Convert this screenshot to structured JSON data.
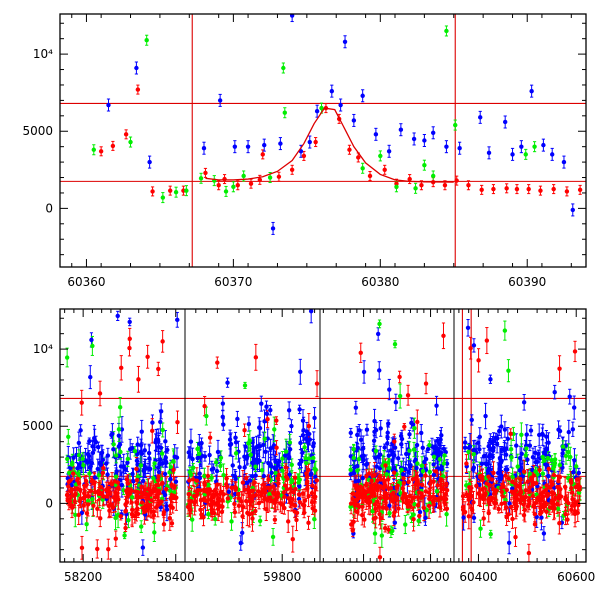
{
  "colors": {
    "red": "#ff0000",
    "green": "#00ee00",
    "blue": "#0000ff",
    "fit": "#dd0000",
    "ref": "#dd0000"
  },
  "chart_data": [
    {
      "type": "scatter",
      "name_hint": "top-panel",
      "xlim": [
        60358.2,
        60394.0
      ],
      "ylim": [
        -3800,
        12600
      ],
      "x_ticks": [
        60360,
        60370,
        60380,
        60390
      ],
      "y_ticks": [
        0,
        5000,
        10000
      ],
      "y_tick_labels": [
        "0",
        "5000",
        "10⁴"
      ],
      "hlines": [
        6800,
        1750
      ],
      "vlines": [
        60367.2,
        60385.1
      ],
      "series": [
        {
          "color": "red",
          "points": [
            [
              60361.0,
              3700
            ],
            [
              60361.8,
              4050
            ],
            [
              60362.7,
              4800
            ],
            [
              60363.5,
              7700
            ],
            [
              60364.5,
              1100
            ],
            [
              60365.7,
              1150
            ],
            [
              60366.6,
              1150
            ],
            [
              60368.1,
              2300
            ],
            [
              60369.0,
              1500
            ],
            [
              60369.4,
              1900
            ],
            [
              60370.3,
              1500
            ],
            [
              60371.2,
              1600
            ],
            [
              60371.8,
              1850
            ],
            [
              60372.0,
              3500
            ],
            [
              60373.1,
              2050
            ],
            [
              60374.0,
              2500
            ],
            [
              60374.8,
              3400
            ],
            [
              60375.6,
              4300
            ],
            [
              60376.3,
              6500
            ],
            [
              60377.2,
              5800
            ],
            [
              60377.9,
              3800
            ],
            [
              60378.5,
              3300
            ],
            [
              60379.3,
              2100
            ],
            [
              60380.3,
              2500
            ],
            [
              60381.1,
              1600
            ],
            [
              60382.0,
              1900
            ],
            [
              60382.8,
              1500
            ],
            [
              60383.6,
              1700
            ],
            [
              60384.4,
              1500
            ],
            [
              60385.2,
              1800
            ],
            [
              60386.0,
              1500
            ],
            [
              60386.9,
              1200
            ],
            [
              60387.7,
              1250
            ],
            [
              60388.6,
              1300
            ],
            [
              60389.3,
              1250
            ],
            [
              60390.1,
              1250
            ],
            [
              60390.9,
              1150
            ],
            [
              60391.8,
              1250
            ],
            [
              60392.7,
              1100
            ],
            [
              60393.6,
              1200
            ]
          ]
        },
        {
          "color": "green",
          "points": [
            [
              60360.5,
              3800
            ],
            [
              60363.0,
              4300
            ],
            [
              60364.1,
              10900
            ],
            [
              60365.2,
              700
            ],
            [
              60366.1,
              1050
            ],
            [
              60366.8,
              1150
            ],
            [
              60367.8,
              1950
            ],
            [
              60368.7,
              1800
            ],
            [
              60369.5,
              1100
            ],
            [
              60370.0,
              1400
            ],
            [
              60370.7,
              2100
            ],
            [
              60372.5,
              2000
            ],
            [
              60373.4,
              9100
            ],
            [
              60373.5,
              6200
            ],
            [
              60376.0,
              6500
            ],
            [
              60378.8,
              2600
            ],
            [
              60380.0,
              3400
            ],
            [
              60381.1,
              1400
            ],
            [
              60382.4,
              1300
            ],
            [
              60383.0,
              2800
            ],
            [
              60383.6,
              2100
            ],
            [
              60384.5,
              11500
            ],
            [
              60385.1,
              5400
            ],
            [
              60389.9,
              3500
            ],
            [
              60390.5,
              4000
            ]
          ]
        },
        {
          "color": "blue",
          "points": [
            [
              60361.5,
              6700
            ],
            [
              60363.4,
              9100
            ],
            [
              60364.3,
              3000
            ],
            [
              60368.0,
              3900
            ],
            [
              60369.1,
              7000
            ],
            [
              60370.1,
              4000
            ],
            [
              60371.0,
              4000
            ],
            [
              60372.1,
              4100
            ],
            [
              60372.7,
              -1300
            ],
            [
              60373.2,
              4200
            ],
            [
              60374.0,
              12500
            ],
            [
              60374.6,
              3700
            ],
            [
              60375.2,
              4300
            ],
            [
              60375.7,
              6300
            ],
            [
              60376.7,
              7600
            ],
            [
              60377.3,
              6700
            ],
            [
              60377.6,
              10800
            ],
            [
              60378.2,
              5700
            ],
            [
              60378.8,
              7300
            ],
            [
              60379.7,
              4800
            ],
            [
              60380.6,
              3700
            ],
            [
              60381.4,
              5100
            ],
            [
              60382.3,
              4500
            ],
            [
              60383.0,
              4400
            ],
            [
              60383.6,
              4900
            ],
            [
              60384.5,
              4000
            ],
            [
              60385.4,
              3900
            ],
            [
              60386.8,
              5900
            ],
            [
              60387.4,
              3600
            ],
            [
              60388.5,
              5600
            ],
            [
              60389.0,
              3500
            ],
            [
              60389.6,
              4000
            ],
            [
              60390.3,
              7600
            ],
            [
              60391.1,
              4100
            ],
            [
              60391.7,
              3500
            ],
            [
              60392.5,
              3000
            ],
            [
              60393.1,
              -100
            ]
          ]
        }
      ],
      "fit_curve": {
        "x": [
          60368.1,
          60369.0,
          60370.0,
          60371.0,
          60372.0,
          60373.0,
          60374.0,
          60374.8,
          60375.5,
          60376.2,
          60376.9,
          60377.5,
          60378.2,
          60379.0,
          60380.0,
          60381.0,
          60382.0,
          60383.0,
          60384.0,
          60385.0
        ],
        "y": [
          1950,
          1850,
          1850,
          1900,
          2050,
          2400,
          3100,
          4200,
          5500,
          6500,
          6400,
          5300,
          4000,
          2950,
          2200,
          1850,
          1750,
          1720,
          1710,
          1700
        ]
      }
    },
    {
      "type": "scatter",
      "name_hint": "bottom-panel",
      "ylim": [
        -3800,
        12600
      ],
      "y_ticks": [
        0,
        5000,
        10000
      ],
      "y_tick_labels": [
        "0",
        "5000",
        "10⁴"
      ],
      "hlines": [
        6800,
        1750
      ],
      "segments": [
        {
          "xlim": [
            58150,
            58420
          ],
          "ticks": [
            58200,
            58400
          ],
          "seasons": [
            [
              58165,
              58405
            ]
          ],
          "vlines": []
        },
        {
          "xlim": [
            59620,
            59870
          ],
          "ticks": [
            59800
          ],
          "seasons": [
            [
              59625,
              59865
            ]
          ],
          "vlines": []
        },
        {
          "xlim": [
            59870,
            60270
          ],
          "ticks": [
            60000,
            60200
          ],
          "seasons": [
            [
              59960,
              60250
            ]
          ],
          "vlines": []
        },
        {
          "xlim": [
            60350,
            60620
          ],
          "ticks": [
            60400,
            60600
          ],
          "seasons": [
            [
              60368,
              60608
            ]
          ],
          "vlines": [
            60367.2,
            60385.1
          ]
        }
      ],
      "cloud_levels": {
        "red": [
          500,
          700
        ],
        "green": [
          1500,
          1400
        ],
        "blue": [
          2700,
          1400
        ]
      }
    }
  ]
}
